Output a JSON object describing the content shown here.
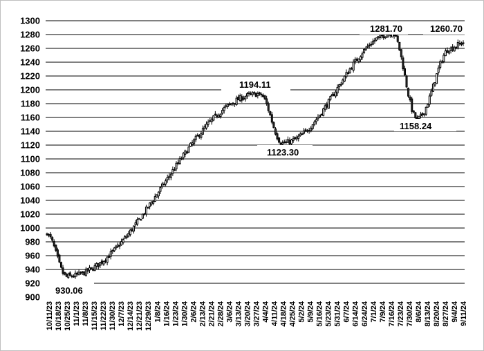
{
  "chart_data": {
    "type": "candlestick",
    "title": "",
    "xlabel": "",
    "ylabel": "",
    "ylim": [
      900,
      1300
    ],
    "yticks": [
      900,
      920,
      940,
      960,
      980,
      1000,
      1020,
      1040,
      1060,
      1080,
      1100,
      1120,
      1140,
      1160,
      1180,
      1200,
      1220,
      1240,
      1260,
      1280,
      1300
    ],
    "grid": "horizontal",
    "legend": "none",
    "colors": {
      "up": "#ffffff",
      "down": "#333333",
      "grid": "#000000",
      "frame": "#bfbfbf"
    },
    "x_labels": [
      "10/11/23",
      "10/18/23",
      "10/25/23",
      "11/1/23",
      "11/8/23",
      "11/15/23",
      "11/22/23",
      "11/30/23",
      "12/7/23",
      "12/14/23",
      "12/21/23",
      "12/29/23",
      "1/8/24",
      "1/16/24",
      "1/23/24",
      "1/30/24",
      "2/6/24",
      "2/13/24",
      "2/21/24",
      "2/28/24",
      "3/6/24",
      "3/13/24",
      "3/20/24",
      "3/27/24",
      "4/4/24",
      "4/11/24",
      "4/18/24",
      "4/25/24",
      "5/2/24",
      "5/9/24",
      "5/16/24",
      "5/23/24",
      "5/31/24",
      "6/7/24",
      "6/14/24",
      "6/24/24",
      "7/1/24",
      "7/9/24",
      "7/16/24",
      "7/23/24",
      "7/30/24",
      "8/6/24",
      "8/13/24",
      "8/20/24",
      "8/27/24",
      "9/4/24",
      "9/11/24"
    ],
    "annotations": [
      {
        "label": "930.06",
        "value": 930.06
      },
      {
        "label": "1194.11",
        "value": 1194.11
      },
      {
        "label": "1123.30",
        "value": 1123.3
      },
      {
        "label": "1281.70",
        "value": 1281.7
      },
      {
        "label": "1158.24",
        "value": 1158.24
      },
      {
        "label": "1260.70",
        "value": 1260.7
      }
    ],
    "x_key_dates": [
      "10/11/23",
      "10/27/23",
      "4/1/24",
      "4/19/24",
      "7/17/24",
      "8/7/24",
      "9/3/24",
      "9/13/24"
    ],
    "close_key_values": [
      990,
      930.06,
      1194.11,
      1123.3,
      1281.7,
      1158.24,
      1260.7,
      1268
    ],
    "trading_days": 236
  }
}
